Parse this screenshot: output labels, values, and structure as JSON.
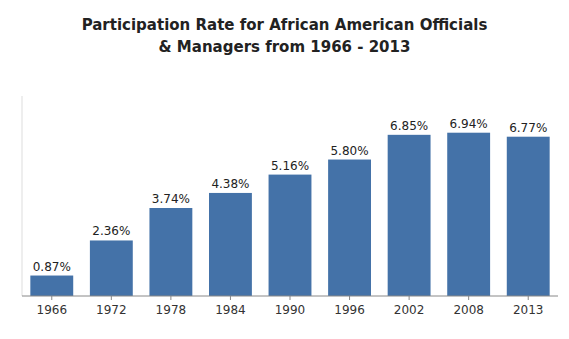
{
  "chart_data": {
    "type": "bar",
    "title": "Participation Rate for African American Officials\n& Managers from 1966 - 2013",
    "categories": [
      "1966",
      "1972",
      "1978",
      "1984",
      "1990",
      "1996",
      "2002",
      "2008",
      "2013"
    ],
    "values": [
      0.87,
      2.36,
      3.74,
      4.38,
      5.16,
      5.8,
      6.85,
      6.94,
      6.77
    ],
    "value_labels": [
      "0.87%",
      "2.36%",
      "3.74%",
      "4.38%",
      "5.16%",
      "5.80%",
      "6.85%",
      "6.94%",
      "6.77%"
    ],
    "color": "#4472A8",
    "ylim": [
      0,
      8.5
    ],
    "data_labels": true,
    "tick_labels": "x"
  }
}
